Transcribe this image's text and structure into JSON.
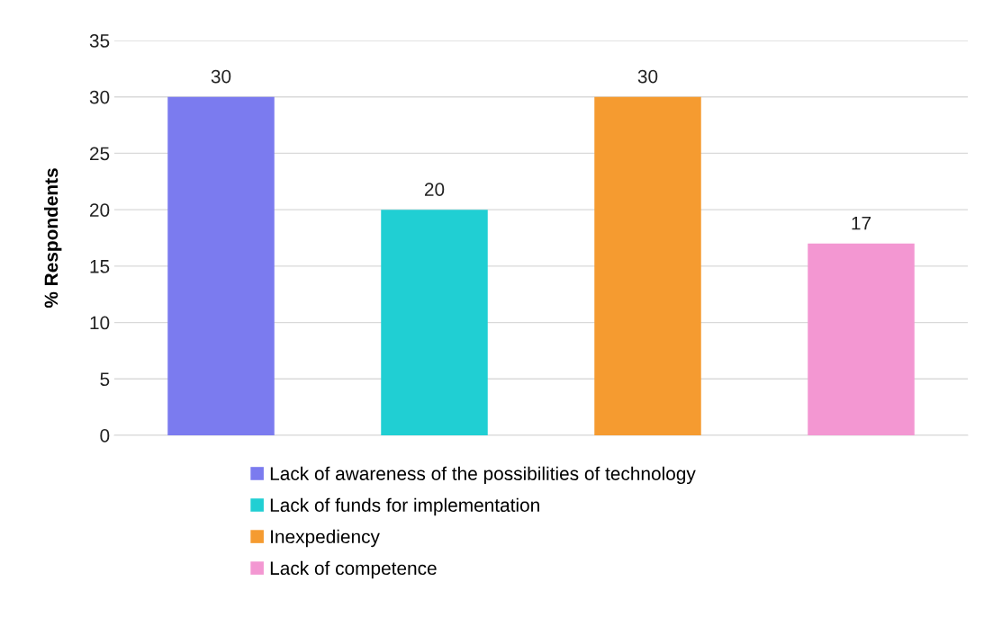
{
  "chart_data": {
    "type": "bar",
    "ylabel": "% Respondents",
    "categories": [
      null,
      null,
      null,
      null
    ],
    "series": [
      {
        "name": "Lack of awareness of the possibilities of technology",
        "color": "#7b7bef",
        "values": [
          30,
          null,
          null,
          null
        ]
      },
      {
        "name": "Lack of funds for implementation",
        "color": "#20cfd3",
        "values": [
          null,
          20,
          null,
          null
        ]
      },
      {
        "name": "Inexpediency",
        "color": "#f59b30",
        "values": [
          null,
          null,
          30,
          null
        ]
      },
      {
        "name": "Lack of competence",
        "color": "#f397d2",
        "values": [
          null,
          null,
          null,
          17
        ]
      }
    ],
    "ylim": [
      0,
      35
    ],
    "yticks": [
      0,
      5,
      10,
      15,
      20,
      25,
      30,
      35
    ],
    "grid": "y",
    "legend": "bottom",
    "data_labels": true
  }
}
